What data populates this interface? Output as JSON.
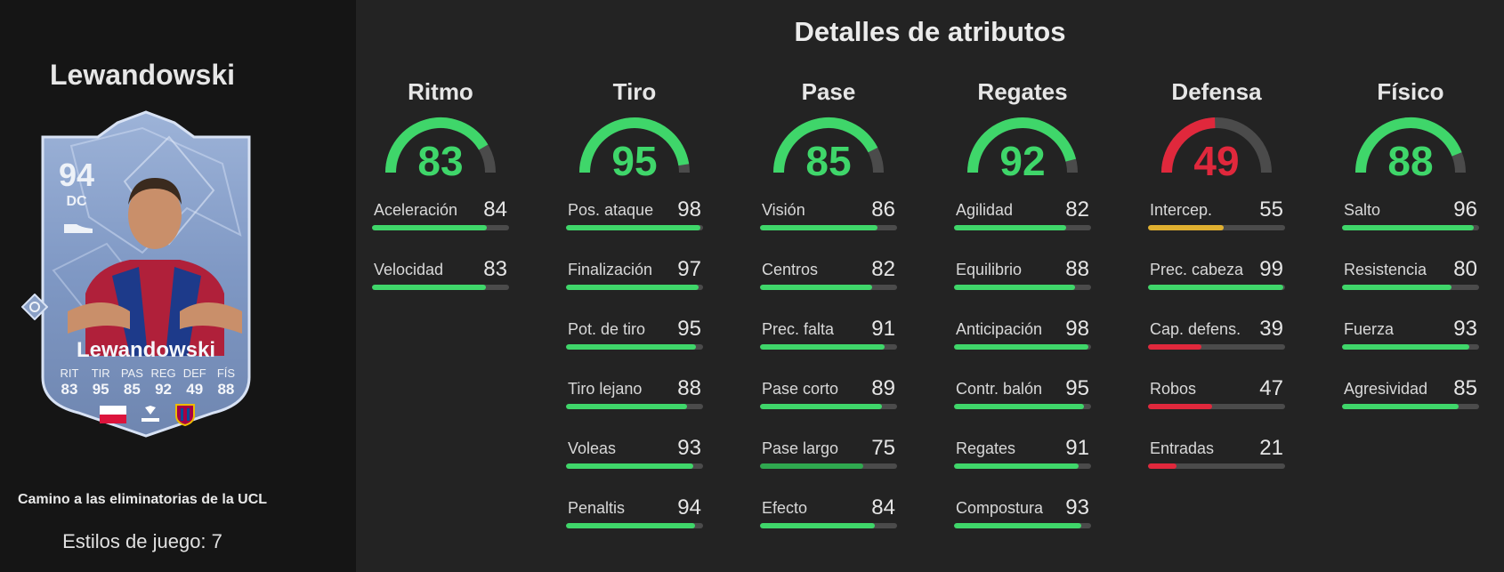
{
  "player": {
    "name": "Lewandowski",
    "card_name": "Lewandowski",
    "rating": "94",
    "position": "DC",
    "card_stats": [
      {
        "label": "RIT",
        "value": "83"
      },
      {
        "label": "TIR",
        "value": "95"
      },
      {
        "label": "PAS",
        "value": "85"
      },
      {
        "label": "REG",
        "value": "92"
      },
      {
        "label": "DEF",
        "value": "49"
      },
      {
        "label": "FÍS",
        "value": "88"
      }
    ],
    "program": "Camino a las eliminatorias de la UCL",
    "playstyles": "Estilos de juego: 7"
  },
  "colors": {
    "high": "#3fd66a",
    "good": "#2fa84f",
    "mid": "#e0b030",
    "low": "#e0283c",
    "track": "#4b4b4b",
    "card": "#7d98c4"
  },
  "details": {
    "title": "Detalles de atributos",
    "categories": [
      {
        "name": "Ritmo",
        "value": 83,
        "attributes": [
          {
            "name": "Aceleración",
            "value": 84
          },
          {
            "name": "Velocidad",
            "value": 83
          }
        ]
      },
      {
        "name": "Tiro",
        "value": 95,
        "attributes": [
          {
            "name": "Pos. ataque",
            "value": 98
          },
          {
            "name": "Finalización",
            "value": 97
          },
          {
            "name": "Pot. de tiro",
            "value": 95
          },
          {
            "name": "Tiro lejano",
            "value": 88
          },
          {
            "name": "Voleas",
            "value": 93
          },
          {
            "name": "Penaltis",
            "value": 94
          }
        ]
      },
      {
        "name": "Pase",
        "value": 85,
        "attributes": [
          {
            "name": "Visión",
            "value": 86
          },
          {
            "name": "Centros",
            "value": 82
          },
          {
            "name": "Prec. falta",
            "value": 91
          },
          {
            "name": "Pase corto",
            "value": 89
          },
          {
            "name": "Pase largo",
            "value": 75
          },
          {
            "name": "Efecto",
            "value": 84
          }
        ]
      },
      {
        "name": "Regates",
        "value": 92,
        "attributes": [
          {
            "name": "Agilidad",
            "value": 82
          },
          {
            "name": "Equilibrio",
            "value": 88
          },
          {
            "name": "Anticipación",
            "value": 98
          },
          {
            "name": "Contr. balón",
            "value": 95
          },
          {
            "name": "Regates",
            "value": 91
          },
          {
            "name": "Compostura",
            "value": 93
          }
        ]
      },
      {
        "name": "Defensa",
        "value": 49,
        "attributes": [
          {
            "name": "Intercep.",
            "value": 55
          },
          {
            "name": "Prec. cabeza",
            "value": 99
          },
          {
            "name": "Cap. defens.",
            "value": 39
          },
          {
            "name": "Robos",
            "value": 47
          },
          {
            "name": "Entradas",
            "value": 21
          }
        ]
      },
      {
        "name": "Físico",
        "value": 88,
        "attributes": [
          {
            "name": "Salto",
            "value": 96
          },
          {
            "name": "Resistencia",
            "value": 80
          },
          {
            "name": "Fuerza",
            "value": 93
          },
          {
            "name": "Agresividad",
            "value": 85
          }
        ]
      }
    ]
  }
}
